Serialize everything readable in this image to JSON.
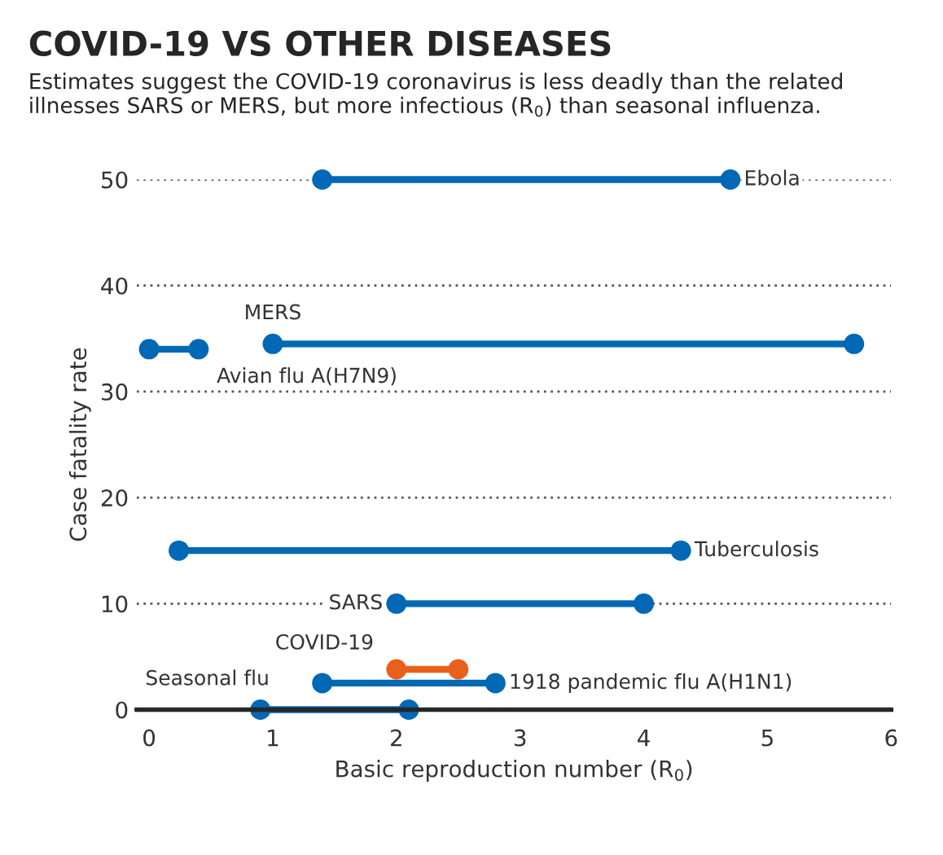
{
  "chart_data": {
    "type": "line",
    "title": "COVID-19 VS OTHER DISEASES",
    "subtitle": "Estimates suggest the COVID-19 coronavirus is less deadly than the related illnesses SARS or MERS, but more infectious (R$_{0}$) than seasonal influenza.",
    "xlabel": "Basic reproduction number (R$_{0}$)",
    "ylabel": "Case fatality rate",
    "series": [
      {
        "name": "Ebola",
        "color": "#0068b4",
        "x": [
          1.4,
          4.7
        ],
        "values": [
          50,
          50
        ]
      },
      {
        "name": "MERS",
        "color": "#0068b4",
        "x": [
          1.0,
          5.7
        ],
        "values": [
          34.5,
          34.5
        ]
      },
      {
        "name": "Avian flu A(H7N9)",
        "color": "#0068b4",
        "x": [
          0,
          0.4
        ],
        "values": [
          34,
          34
        ]
      },
      {
        "name": "Tuberculosis",
        "color": "#0068b4",
        "x": [
          0.24,
          4.3
        ],
        "values": [
          15,
          15
        ]
      },
      {
        "name": "SARS",
        "color": "#0068b4",
        "x": [
          2,
          4
        ],
        "values": [
          10,
          10
        ]
      },
      {
        "name": "COVID-19",
        "color": "#e8601c",
        "x": [
          2,
          2.5
        ],
        "values": [
          3.8,
          3.8
        ]
      },
      {
        "name": "1918 pandemic flu A(H1N1)",
        "color": "#0068b4",
        "x": [
          1.4,
          2.8
        ],
        "values": [
          2.5,
          2.5
        ]
      },
      {
        "name": "Seasonal flu",
        "color": "#0068b4",
        "x": [
          0.9,
          2.1
        ],
        "values": [
          0,
          0
        ]
      }
    ],
    "xlim": [
      -0.1,
      6
    ],
    "xticks": [
      0,
      1,
      2,
      3,
      4,
      5,
      6
    ],
    "ylim": [
      0,
      50
    ],
    "yticks": [
      0,
      10,
      20,
      30,
      40,
      50
    ],
    "grid": "y",
    "legend": false,
    "marker": "circle",
    "line_style": "solid"
  }
}
